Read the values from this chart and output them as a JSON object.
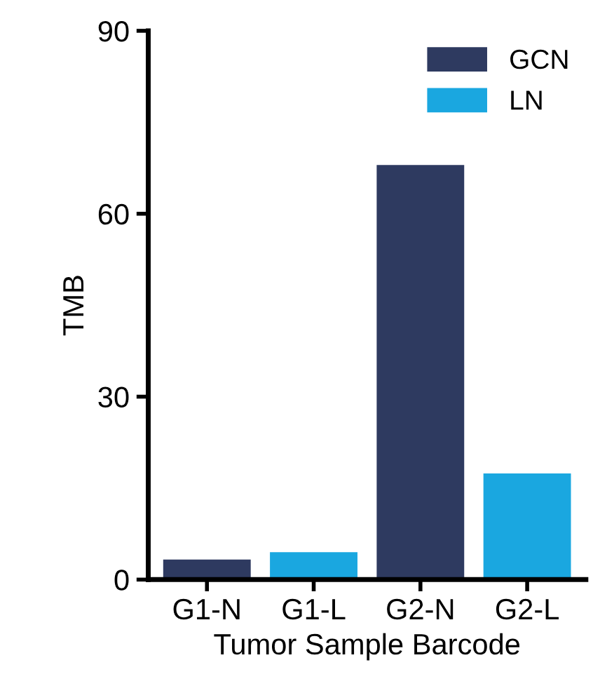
{
  "chart_data": {
    "type": "bar",
    "xlabel": "Tumor Sample Barcode",
    "ylabel": "TMB",
    "categories": [
      "G1-N",
      "G1-L",
      "G2-N",
      "G2-L"
    ],
    "series": [
      {
        "name": "GCN",
        "color": "#2e3a60",
        "values": [
          3.3,
          null,
          68,
          null
        ]
      },
      {
        "name": "LN",
        "color": "#1aa7e0",
        "values": [
          null,
          4.5,
          null,
          17.4
        ]
      }
    ],
    "ylim": [
      0,
      90
    ],
    "yticks": [
      0,
      30,
      60,
      90
    ],
    "grid": false,
    "legend": "top right"
  }
}
